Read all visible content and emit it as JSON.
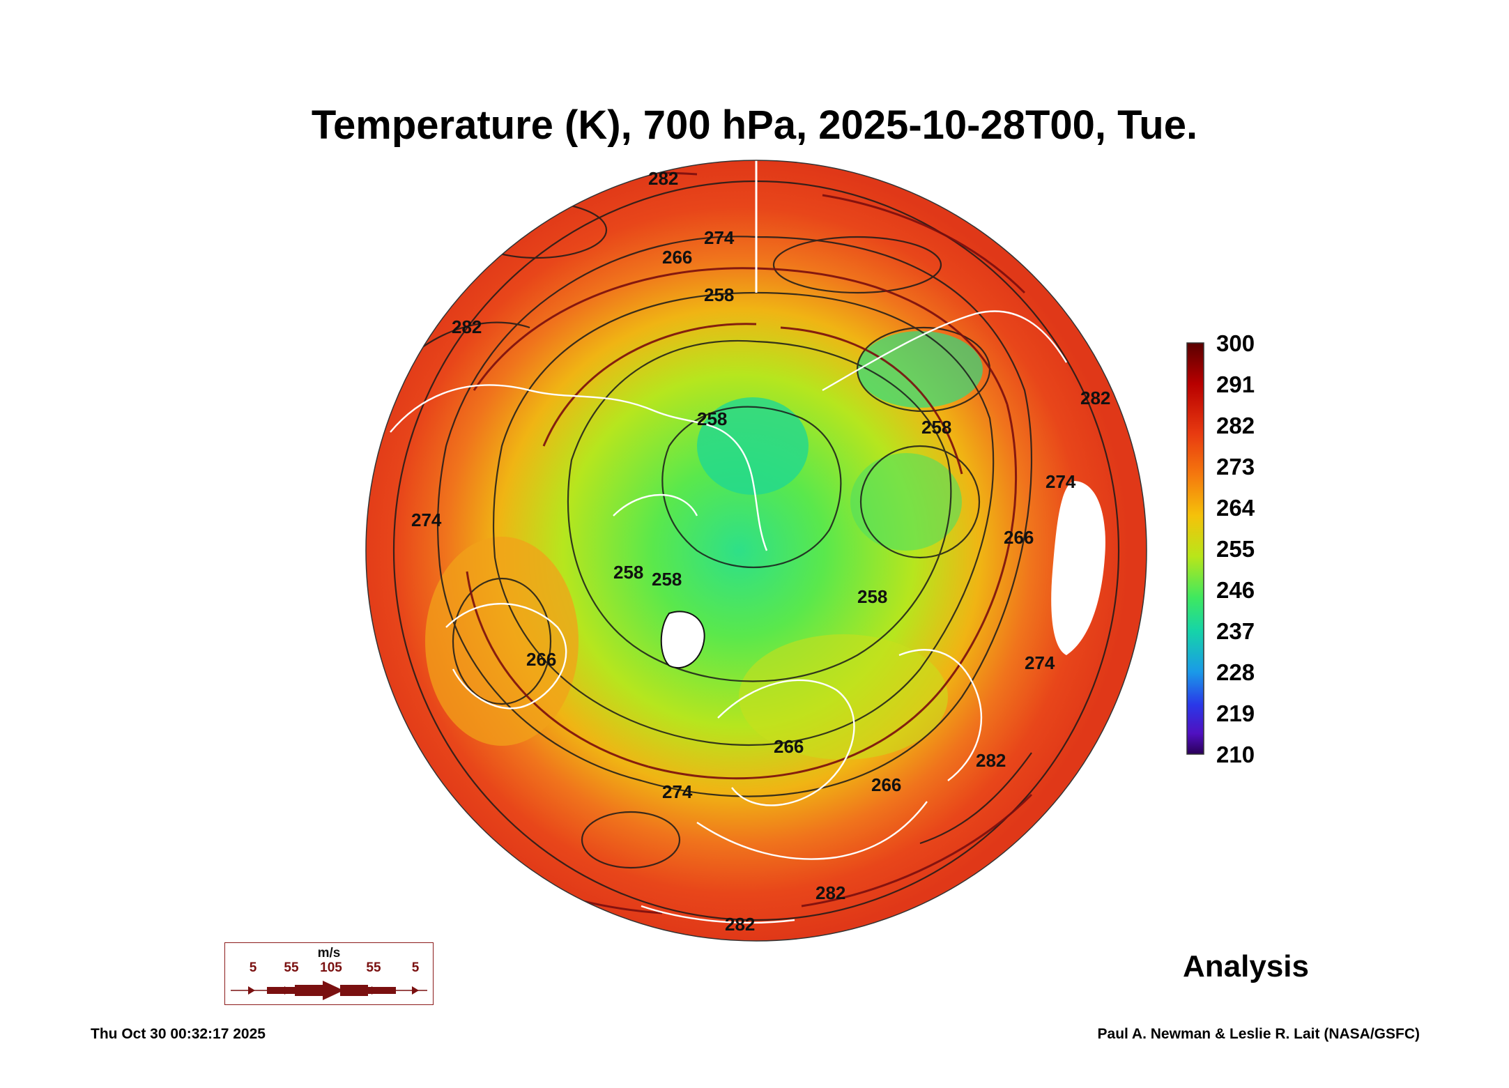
{
  "title": "Temperature (K), 700 hPa, 2025-10-28T00, Tue.",
  "colorbar": {
    "ticks": [
      "300",
      "291",
      "282",
      "273",
      "264",
      "255",
      "246",
      "237",
      "228",
      "219",
      "210"
    ],
    "stops": [
      "#5a0000",
      "#b80000",
      "#e83a10",
      "#f5780e",
      "#f5c20a",
      "#b8e61a",
      "#3ee860",
      "#16d4a8",
      "#1a9ae8",
      "#2a38e8",
      "#5010c0",
      "#2a0058"
    ]
  },
  "map": {
    "contour_labels": [
      "282",
      "274",
      "266",
      "258",
      "282",
      "258",
      "258",
      "274",
      "266",
      "274",
      "282",
      "282",
      "274",
      "266",
      "282",
      "266",
      "274",
      "282",
      "258",
      "258",
      "258",
      "266"
    ]
  },
  "wind_legend": {
    "unit": "m/s",
    "values": [
      "5",
      "55",
      "105",
      "55",
      "5"
    ]
  },
  "product_label": "Analysis",
  "timestamp": "Thu Oct 30 00:32:17 2025",
  "credit": "Paul A. Newman & Leslie R. Lait (NASA/GSFC)"
}
